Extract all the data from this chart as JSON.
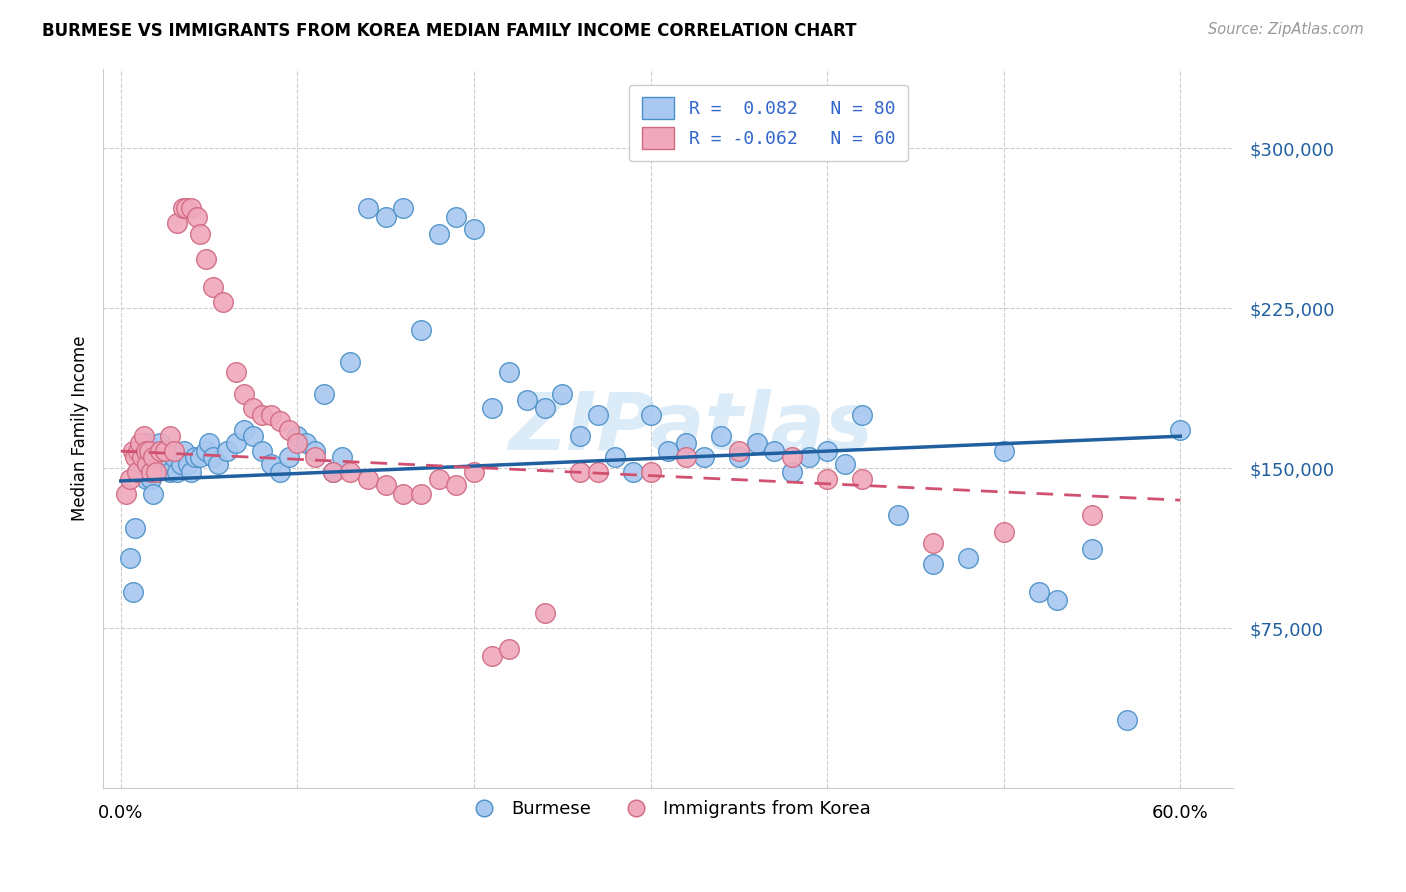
{
  "title": "BURMESE VS IMMIGRANTS FROM KOREA MEDIAN FAMILY INCOME CORRELATION CHART",
  "source": "Source: ZipAtlas.com",
  "ylabel": "Median Family Income",
  "watermark": "ZIPatlas",
  "yticks": [
    75000,
    150000,
    225000,
    300000
  ],
  "ytick_labels": [
    "$75,000",
    "$150,000",
    "$225,000",
    "$300,000"
  ],
  "ymin": 0,
  "ymax": 337500,
  "xmin": -1,
  "xmax": 63,
  "legend_blue_r": "R =  0.082",
  "legend_blue_n": "N = 80",
  "legend_pink_r": "R = -0.062",
  "legend_pink_n": "N = 60",
  "blue_color": "#A8C8F0",
  "pink_color": "#F0A8BC",
  "blue_edge_color": "#4A90C8",
  "pink_edge_color": "#D06880",
  "blue_line_color": "#2060A0",
  "pink_line_color": "#D05070",
  "background_color": "#FFFFFF",
  "blue_scatter": [
    [
      0.5,
      108000
    ],
    [
      0.7,
      92000
    ],
    [
      0.8,
      122000
    ],
    [
      1.0,
      148000
    ],
    [
      1.2,
      152000
    ],
    [
      1.3,
      158000
    ],
    [
      1.4,
      145000
    ],
    [
      1.5,
      162000
    ],
    [
      1.6,
      155000
    ],
    [
      1.7,
      145000
    ],
    [
      1.8,
      138000
    ],
    [
      2.0,
      148000
    ],
    [
      2.2,
      162000
    ],
    [
      2.5,
      155000
    ],
    [
      2.8,
      148000
    ],
    [
      3.0,
      155000
    ],
    [
      3.2,
      148000
    ],
    [
      3.4,
      152000
    ],
    [
      3.6,
      158000
    ],
    [
      3.8,
      152000
    ],
    [
      4.0,
      148000
    ],
    [
      4.2,
      155000
    ],
    [
      4.5,
      155000
    ],
    [
      4.8,
      158000
    ],
    [
      5.0,
      162000
    ],
    [
      5.2,
      155000
    ],
    [
      5.5,
      152000
    ],
    [
      6.0,
      158000
    ],
    [
      6.5,
      162000
    ],
    [
      7.0,
      168000
    ],
    [
      7.5,
      165000
    ],
    [
      8.0,
      158000
    ],
    [
      8.5,
      152000
    ],
    [
      9.0,
      148000
    ],
    [
      9.5,
      155000
    ],
    [
      10.0,
      165000
    ],
    [
      10.5,
      162000
    ],
    [
      11.0,
      158000
    ],
    [
      11.5,
      185000
    ],
    [
      12.0,
      148000
    ],
    [
      12.5,
      155000
    ],
    [
      13.0,
      200000
    ],
    [
      14.0,
      272000
    ],
    [
      15.0,
      268000
    ],
    [
      16.0,
      272000
    ],
    [
      17.0,
      215000
    ],
    [
      18.0,
      260000
    ],
    [
      19.0,
      268000
    ],
    [
      20.0,
      262000
    ],
    [
      21.0,
      178000
    ],
    [
      22.0,
      195000
    ],
    [
      23.0,
      182000
    ],
    [
      24.0,
      178000
    ],
    [
      25.0,
      185000
    ],
    [
      26.0,
      165000
    ],
    [
      27.0,
      175000
    ],
    [
      28.0,
      155000
    ],
    [
      29.0,
      148000
    ],
    [
      30.0,
      175000
    ],
    [
      31.0,
      158000
    ],
    [
      32.0,
      162000
    ],
    [
      33.0,
      155000
    ],
    [
      34.0,
      165000
    ],
    [
      35.0,
      155000
    ],
    [
      36.0,
      162000
    ],
    [
      37.0,
      158000
    ],
    [
      38.0,
      148000
    ],
    [
      39.0,
      155000
    ],
    [
      40.0,
      158000
    ],
    [
      41.0,
      152000
    ],
    [
      42.0,
      175000
    ],
    [
      44.0,
      128000
    ],
    [
      46.0,
      105000
    ],
    [
      48.0,
      108000
    ],
    [
      50.0,
      158000
    ],
    [
      52.0,
      92000
    ],
    [
      53.0,
      88000
    ],
    [
      55.0,
      112000
    ],
    [
      57.0,
      32000
    ],
    [
      60.0,
      168000
    ]
  ],
  "pink_scatter": [
    [
      0.3,
      138000
    ],
    [
      0.5,
      145000
    ],
    [
      0.7,
      158000
    ],
    [
      0.8,
      155000
    ],
    [
      0.9,
      148000
    ],
    [
      1.0,
      158000
    ],
    [
      1.1,
      162000
    ],
    [
      1.2,
      155000
    ],
    [
      1.3,
      165000
    ],
    [
      1.4,
      158000
    ],
    [
      1.5,
      152000
    ],
    [
      1.6,
      158000
    ],
    [
      1.7,
      148000
    ],
    [
      1.8,
      155000
    ],
    [
      2.0,
      148000
    ],
    [
      2.2,
      158000
    ],
    [
      2.5,
      158000
    ],
    [
      2.8,
      165000
    ],
    [
      3.0,
      158000
    ],
    [
      3.2,
      265000
    ],
    [
      3.5,
      272000
    ],
    [
      3.7,
      272000
    ],
    [
      4.0,
      272000
    ],
    [
      4.3,
      268000
    ],
    [
      4.5,
      260000
    ],
    [
      4.8,
      248000
    ],
    [
      5.2,
      235000
    ],
    [
      5.8,
      228000
    ],
    [
      6.5,
      195000
    ],
    [
      7.0,
      185000
    ],
    [
      7.5,
      178000
    ],
    [
      8.0,
      175000
    ],
    [
      8.5,
      175000
    ],
    [
      9.0,
      172000
    ],
    [
      9.5,
      168000
    ],
    [
      10.0,
      162000
    ],
    [
      11.0,
      155000
    ],
    [
      12.0,
      148000
    ],
    [
      13.0,
      148000
    ],
    [
      14.0,
      145000
    ],
    [
      15.0,
      142000
    ],
    [
      16.0,
      138000
    ],
    [
      17.0,
      138000
    ],
    [
      18.0,
      145000
    ],
    [
      19.0,
      142000
    ],
    [
      20.0,
      148000
    ],
    [
      21.0,
      62000
    ],
    [
      22.0,
      65000
    ],
    [
      24.0,
      82000
    ],
    [
      26.0,
      148000
    ],
    [
      27.0,
      148000
    ],
    [
      30.0,
      148000
    ],
    [
      32.0,
      155000
    ],
    [
      35.0,
      158000
    ],
    [
      38.0,
      155000
    ],
    [
      40.0,
      145000
    ],
    [
      42.0,
      145000
    ],
    [
      46.0,
      115000
    ],
    [
      50.0,
      120000
    ],
    [
      55.0,
      128000
    ]
  ],
  "blue_trendline": [
    [
      0,
      144000
    ],
    [
      60,
      165000
    ]
  ],
  "pink_trendline": [
    [
      0,
      158000
    ],
    [
      60,
      135000
    ]
  ]
}
